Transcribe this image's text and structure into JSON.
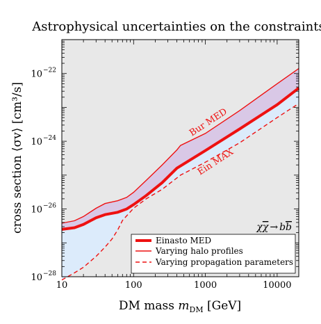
{
  "chart_data": {
    "type": "area",
    "title": "Astrophysical uncertainties on the constraints",
    "xlabel": "DM mass m_DM [GeV]",
    "xlabel_parts": {
      "main": "DM mass ",
      "var": "m",
      "sub": "DM",
      "unit": " [GeV]"
    },
    "ylabel": "cross section ⟨σv⟩ [cm³/s]",
    "xscale": "log",
    "yscale": "log",
    "xlim": [
      10,
      20000
    ],
    "ylim": [
      1e-28,
      1e-21
    ],
    "x_ticks": [
      {
        "value": 10,
        "label": "10"
      },
      {
        "value": 100,
        "label": "100"
      },
      {
        "value": 1000,
        "label": "1000"
      },
      {
        "value": 10000,
        "label": "10000"
      }
    ],
    "y_ticks": [
      {
        "value": 1e-28,
        "base": "10",
        "exp": "−28"
      },
      {
        "value": 1e-26,
        "base": "10",
        "exp": "−26"
      },
      {
        "value": 1e-24,
        "base": "10",
        "exp": "−24"
      },
      {
        "value": 1e-22,
        "base": "10",
        "exp": "−22"
      }
    ],
    "band_colors": {
      "halo": "#d9c8e6",
      "propagation": "#dcebfb",
      "frame_bg": "#e8e8e8"
    },
    "series": [
      {
        "name": "Einasto MED",
        "style": "thick-solid",
        "color": "#ee1111",
        "x": [
          10,
          15,
          20,
          30,
          40,
          60,
          80,
          100,
          150,
          250,
          400,
          1000,
          3000,
          10000,
          20000
        ],
        "y": [
          2.5e-27,
          2.8e-27,
          3.5e-27,
          5.5e-27,
          6.8e-27,
          8e-27,
          1e-26,
          1.35e-26,
          2.5e-26,
          6e-26,
          1.6e-25,
          5.3e-25,
          2.3e-24,
          1.2e-23,
          3.7e-23
        ]
      },
      {
        "name": "Varying halo profiles",
        "style": "thin-solid",
        "color": "#ee1111",
        "x": [
          10,
          15,
          20,
          30,
          40,
          60,
          80,
          100,
          150,
          250,
          400,
          450,
          1000,
          3000,
          10000,
          20000
        ],
        "y": [
          3.8e-27,
          4.5e-27,
          6e-27,
          1.05e-26,
          1.45e-26,
          1.75e-26,
          2.2e-26,
          3.1e-26,
          7e-26,
          2e-25,
          5.5e-25,
          7.5e-25,
          1.7e-24,
          8e-24,
          5e-23,
          1.4e-22
        ]
      },
      {
        "name": "Varying propagation parameters",
        "style": "dashed",
        "color": "#ee1111",
        "x": [
          10,
          15,
          20,
          30,
          40,
          50,
          60,
          70,
          100,
          150,
          250,
          450,
          1000,
          3000,
          10000,
          20000
        ],
        "y": [
          8e-29,
          1.3e-28,
          1.9e-28,
          4e-28,
          7.5e-28,
          1.3e-27,
          2.4e-27,
          4.6e-27,
          1.05e-26,
          2e-26,
          3.8e-26,
          1e-25,
          2.4e-25,
          9e-25,
          5e-24,
          1.3e-23
        ]
      }
    ],
    "annotations": [
      {
        "text": "Bur MED",
        "x": 1150,
        "y": 3.1e-24,
        "angle": -33
      },
      {
        "text": "Ein MAX",
        "x": 1450,
        "y": 2.1e-25,
        "angle": -33
      }
    ],
    "process_label": {
      "lhs": "χ",
      "lhsbar": "χ",
      "arrow": "→",
      "rhs": "b",
      "rhsbar": "b"
    },
    "legend_position": "bottom-right"
  }
}
